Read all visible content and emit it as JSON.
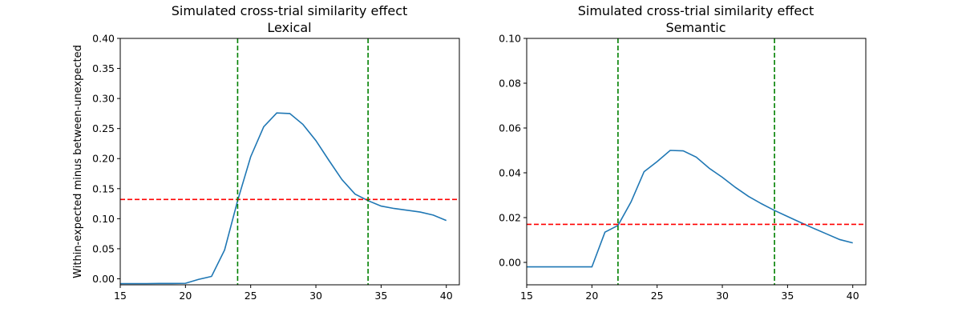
{
  "chart_data": [
    {
      "type": "line",
      "title": "Simulated cross-trial similarity effect",
      "subtitle": "Lexical",
      "ylabel": "Within-expected minus between-unexpected",
      "xlabel": "",
      "xlim": [
        15,
        41
      ],
      "ylim": [
        -0.01,
        0.4
      ],
      "xticks": [
        15,
        20,
        25,
        30,
        35,
        40
      ],
      "yticks": [
        0.0,
        0.05,
        0.1,
        0.15,
        0.2,
        0.25,
        0.3,
        0.35,
        0.4
      ],
      "ytick_labels": [
        "0.00",
        "0.05",
        "0.10",
        "0.15",
        "0.20",
        "0.25",
        "0.30",
        "0.35",
        "0.40"
      ],
      "series": [
        {
          "color": "#1f77b4",
          "x": [
            15,
            16,
            17,
            18,
            19,
            20,
            21,
            22,
            23,
            24,
            25,
            26,
            27,
            28,
            29,
            30,
            31,
            32,
            33,
            34,
            35,
            36,
            37,
            38,
            39,
            40
          ],
          "y": [
            -0.008,
            -0.008,
            -0.008,
            -0.0078,
            -0.0077,
            -0.0075,
            -0.001,
            0.004,
            0.048,
            0.13,
            0.203,
            0.253,
            0.276,
            0.275,
            0.257,
            0.23,
            0.197,
            0.165,
            0.141,
            0.13,
            0.121,
            0.117,
            0.114,
            0.111,
            0.106,
            0.097
          ]
        }
      ],
      "hlines": [
        {
          "y": 0.132,
          "color": "#ff0000",
          "style": "dashed"
        }
      ],
      "vlines": [
        {
          "x": 24,
          "color": "#008000",
          "style": "dashed"
        },
        {
          "x": 34,
          "color": "#008000",
          "style": "dashed"
        }
      ]
    },
    {
      "type": "line",
      "title": "Simulated cross-trial similarity effect",
      "subtitle": "Semantic",
      "ylabel": "",
      "xlabel": "",
      "xlim": [
        15,
        41
      ],
      "ylim": [
        -0.01,
        0.1
      ],
      "xticks": [
        15,
        20,
        25,
        30,
        35,
        40
      ],
      "yticks": [
        0.0,
        0.02,
        0.04,
        0.06,
        0.08,
        0.1
      ],
      "ytick_labels": [
        "0.00",
        "0.02",
        "0.04",
        "0.06",
        "0.08",
        "0.10"
      ],
      "series": [
        {
          "color": "#1f77b4",
          "x": [
            15,
            16,
            17,
            18,
            19,
            20,
            21,
            22,
            23,
            24,
            25,
            26,
            27,
            28,
            29,
            30,
            31,
            32,
            33,
            34,
            35,
            36,
            37,
            38,
            39,
            40
          ],
          "y": [
            -0.002,
            -0.002,
            -0.002,
            -0.002,
            -0.002,
            -0.002,
            0.0135,
            0.0165,
            0.027,
            0.0405,
            0.045,
            0.05,
            0.0498,
            0.047,
            0.042,
            0.038,
            0.0335,
            0.0295,
            0.0262,
            0.0232,
            0.0205,
            0.0178,
            0.0152,
            0.0127,
            0.0102,
            0.0087
          ]
        }
      ],
      "hlines": [
        {
          "y": 0.017,
          "color": "#ff0000",
          "style": "dashed"
        }
      ],
      "vlines": [
        {
          "x": 22,
          "color": "#008000",
          "style": "dashed"
        },
        {
          "x": 34,
          "color": "#008000",
          "style": "dashed"
        }
      ]
    }
  ]
}
